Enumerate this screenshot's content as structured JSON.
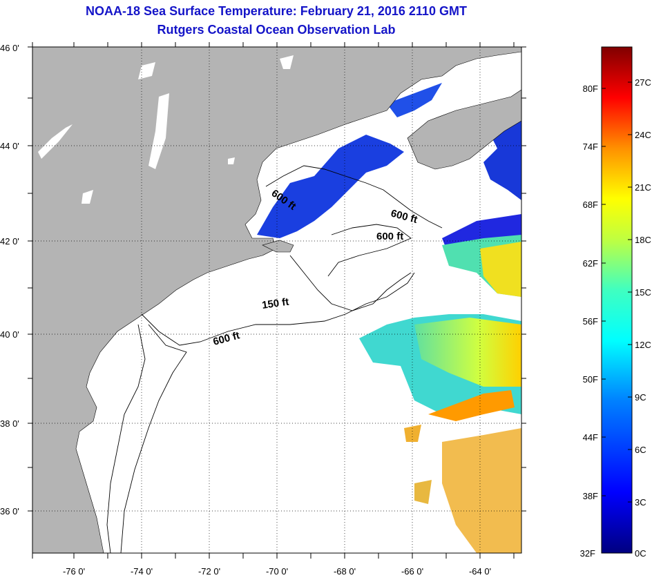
{
  "header": {
    "title": "NOAA-18 Sea Surface Temperature:  February 21, 2016 2110 GMT",
    "subtitle": "Rutgers Coastal Ocean Observation Lab"
  },
  "map": {
    "lat_labels": [
      "46 0'",
      "44 0'",
      "42 0'",
      "40 0'",
      "38 0'",
      "36 0'"
    ],
    "lon_labels": [
      "-76 0'",
      "-74 0'",
      "-72 0'",
      "-70 0'",
      "-68 0'",
      "-66 0'",
      "-64 0'"
    ],
    "lat_values": [
      46,
      44,
      42,
      40,
      38,
      36
    ],
    "lon_values": [
      -76,
      -74,
      -72,
      -70,
      -68,
      -66,
      -64
    ],
    "contours": [
      {
        "label": "600 ft",
        "id": "contour-label-600-gulf-west"
      },
      {
        "label": "600 ft",
        "id": "contour-label-600-gulf-east"
      },
      {
        "label": "600 ft",
        "id": "contour-label-600-georges"
      },
      {
        "label": "150 ft",
        "id": "contour-label-150"
      },
      {
        "label": "600 ft",
        "id": "contour-label-600-shelf"
      }
    ],
    "colors": {
      "land": "#b4b4b4",
      "water_nodata": "#ffffff"
    }
  },
  "colorbar": {
    "fahrenheit": [
      "80F",
      "74F",
      "68F",
      "62F",
      "56F",
      "50F",
      "44F",
      "38F",
      "32F"
    ],
    "celsius": [
      "27C",
      "24C",
      "21C",
      "18C",
      "15C",
      "12C",
      "9C",
      "6C",
      "3C",
      "0C"
    ],
    "range_c": [
      0,
      29
    ]
  }
}
